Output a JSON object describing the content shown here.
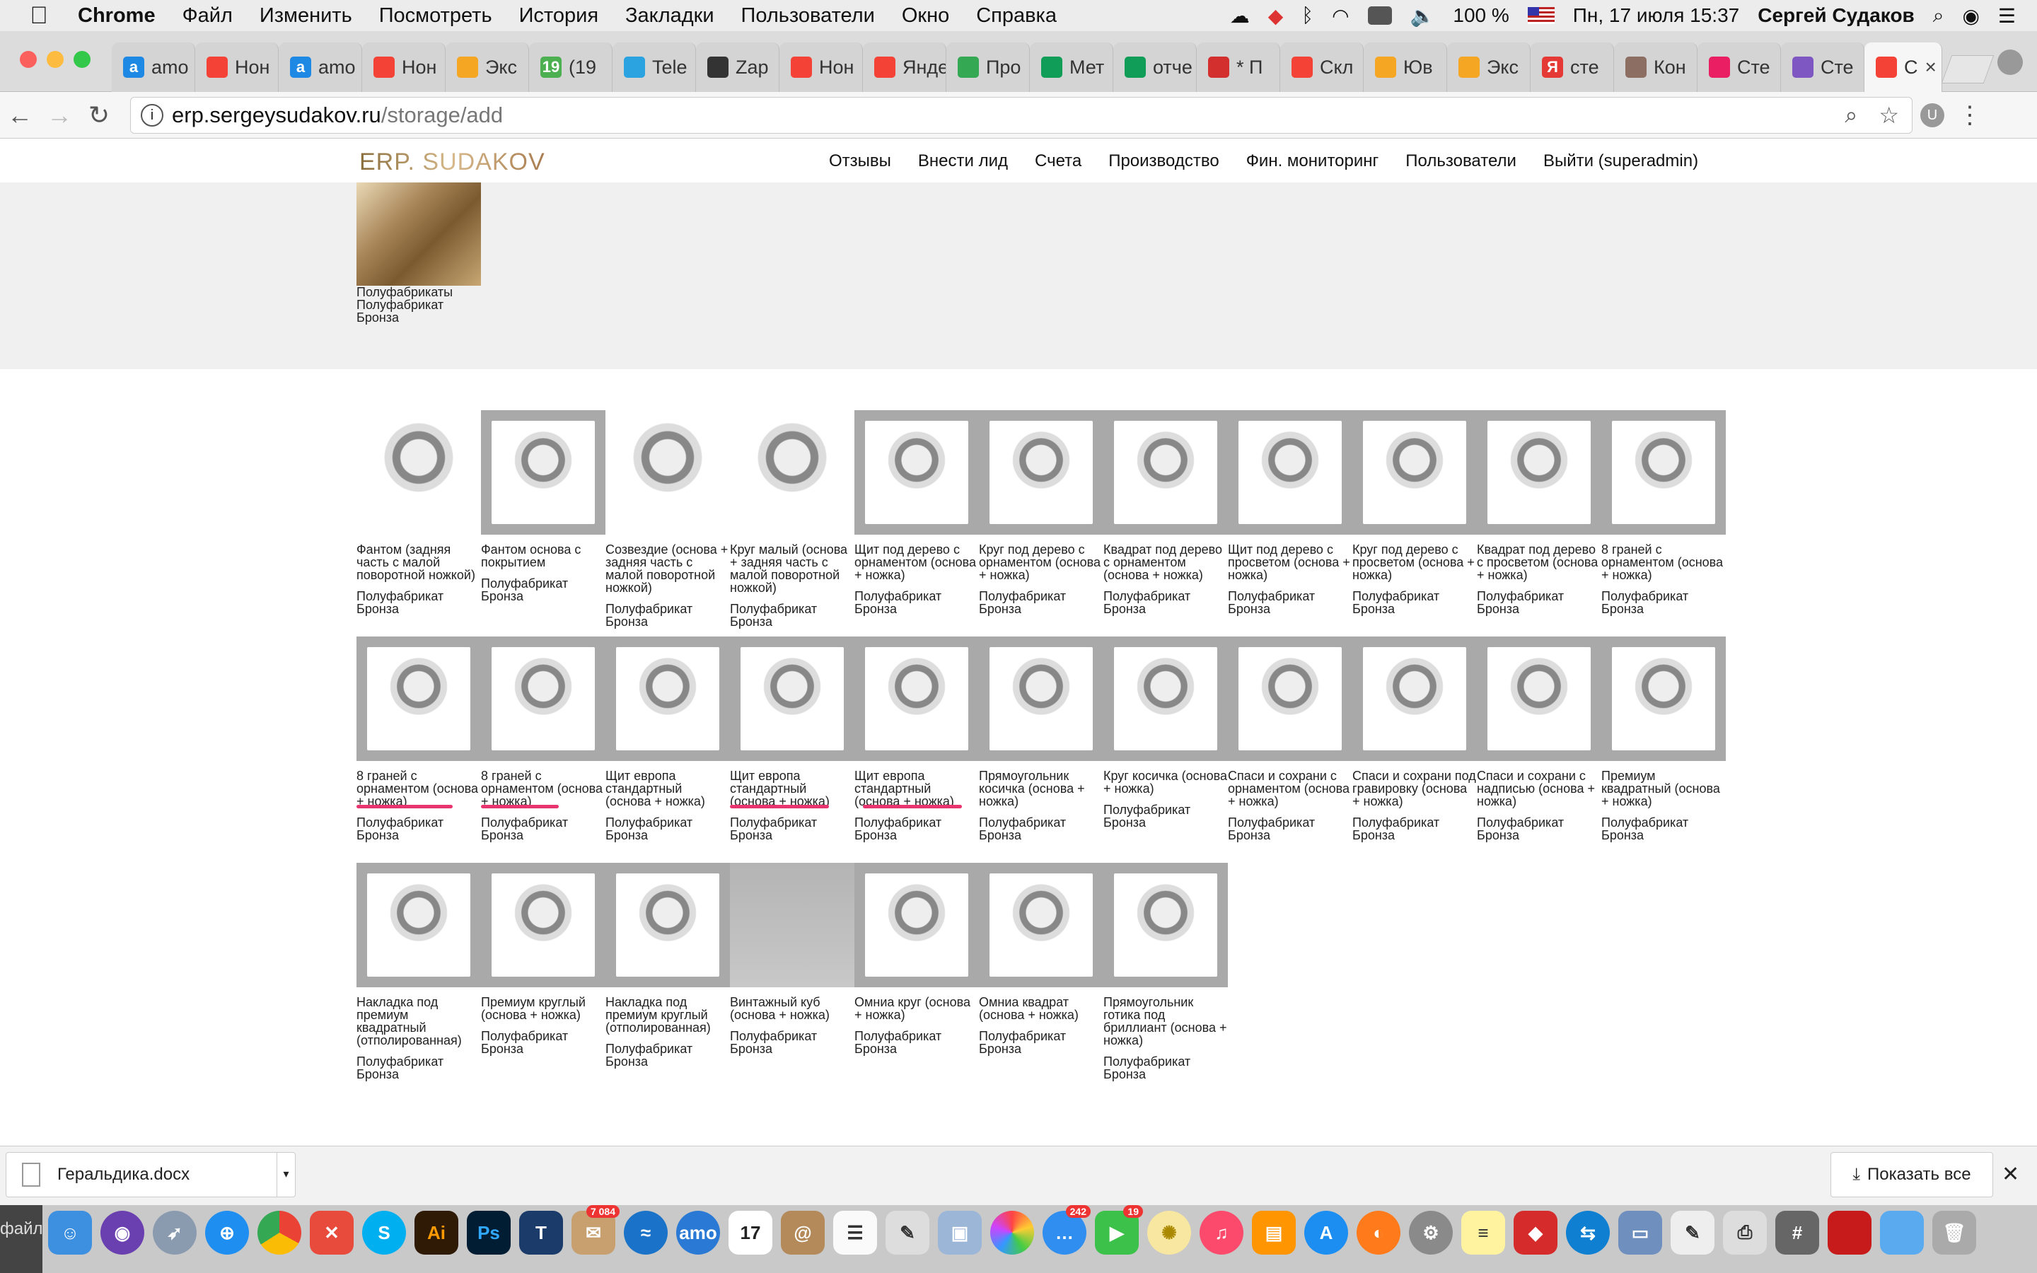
{
  "menubar": {
    "app": "Chrome",
    "items": [
      "Файл",
      "Изменить",
      "Посмотреть",
      "История",
      "Закладки",
      "Пользователи",
      "Окно",
      "Справка"
    ],
    "battery": "100 %",
    "datetime": "Пн, 17 июля  15:37",
    "user": "Сергей Судаков"
  },
  "tabs": [
    {
      "label": "amo",
      "icon": "a",
      "color": "#1e88e5"
    },
    {
      "label": "Нон",
      "icon": "",
      "color": "#f44336"
    },
    {
      "label": "amo",
      "icon": "a",
      "color": "#1e88e5"
    },
    {
      "label": "Нон",
      "icon": "",
      "color": "#f44336"
    },
    {
      "label": "Экс",
      "icon": "",
      "color": "#f5a623"
    },
    {
      "label": "(19",
      "icon": "19",
      "color": "#4caf50"
    },
    {
      "label": "Tele",
      "icon": "",
      "color": "#2aa3e0"
    },
    {
      "label": "Zap",
      "icon": "",
      "color": "#333333"
    },
    {
      "label": "Нон",
      "icon": "",
      "color": "#f44336"
    },
    {
      "label": "Яндекс",
      "icon": "",
      "color": "#f44336"
    },
    {
      "label": "Про",
      "icon": "",
      "color": "#34a853"
    },
    {
      "label": "Мет",
      "icon": "",
      "color": "#0f9d58"
    },
    {
      "label": "отче",
      "icon": "",
      "color": "#0f9d58"
    },
    {
      "label": "* П",
      "icon": "",
      "color": "#d32f2f"
    },
    {
      "label": "Скл",
      "icon": "",
      "color": "#f44336"
    },
    {
      "label": "Юв",
      "icon": "",
      "color": "#f5a623"
    },
    {
      "label": "Экс",
      "icon": "",
      "color": "#f5a623"
    },
    {
      "label": "сте",
      "icon": "Я",
      "color": "#e53935"
    },
    {
      "label": "Кон",
      "icon": "",
      "color": "#8d6e63"
    },
    {
      "label": "Сте",
      "icon": "",
      "color": "#e91e63"
    },
    {
      "label": "Сте",
      "icon": "",
      "color": "#7e57c2"
    },
    {
      "label": "С",
      "icon": "",
      "color": "#f44336",
      "active": true
    }
  ],
  "address": {
    "host": "erp.sergeysudakov.ru",
    "path": "/storage/add"
  },
  "site": {
    "logo": "ERP. SUDAKOV",
    "nav": [
      "Отзывы",
      "Внести лид",
      "Счета",
      "Производство",
      "Фин. мониторинг",
      "Пользователи",
      "Выйти (superadmin)"
    ]
  },
  "hero": {
    "lines": [
      "Полуфабрикаты",
      "Полуфабрикат",
      "Бронза"
    ]
  },
  "products": {
    "row1": [
      {
        "name": "Фантом (задняя часть с малой поворотной ножкой)",
        "type": "Полуфабрикат",
        "material": "Бронза",
        "thumb": "plain"
      },
      {
        "name": "Фантом основа с покрытием",
        "type": "Полуфабрикат",
        "material": "Бронза",
        "thumb": "frame"
      },
      {
        "name": "Созвездие (основа + задняя часть с малой поворотной ножкой)",
        "type": "Полуфабрикат",
        "material": "Бронза",
        "thumb": "plain"
      },
      {
        "name": "Круг малый (основа + задняя часть с малой поворотной ножкой)",
        "type": "Полуфабрикат",
        "material": "Бронза",
        "thumb": "plain"
      },
      {
        "name": "Щит под дерево с орнаментом (основа + ножка)",
        "type": "Полуфабрикат",
        "material": "Бронза",
        "thumb": "frame"
      },
      {
        "name": "Круг под дерево с орнаментом (основа + ножка)",
        "type": "Полуфабрикат",
        "material": "Бронза",
        "thumb": "frame"
      },
      {
        "name": "Квадрат под дерево с орнаментом (основа + ножка)",
        "type": "Полуфабрикат",
        "material": "Бронза",
        "thumb": "frame"
      },
      {
        "name": "Щит под дерево с просветом (основа + ножка)",
        "type": "Полуфабрикат",
        "material": "Бронза",
        "thumb": "frame"
      },
      {
        "name": "Круг под дерево с просветом (основа + ножка)",
        "type": "Полуфабрикат",
        "material": "Бронза",
        "thumb": "frame"
      },
      {
        "name": "Квадрат под дерево с просветом (основа + ножка)",
        "type": "Полуфабрикат",
        "material": "Бронза",
        "thumb": "frame"
      },
      {
        "name": "8 граней с орнаментом (основа + ножка)",
        "type": "Полуфабрикат",
        "material": "Бронза",
        "thumb": "frame"
      }
    ],
    "row2": [
      {
        "name": "8 граней с орнаментом (основа + ножка)",
        "type": "Полуфабрикат",
        "material": "Бронза",
        "thumb": "frame"
      },
      {
        "name": "8 граней с орнаментом (основа + ножка)",
        "type": "Полуфабрикат",
        "material": "Бронза",
        "thumb": "frame"
      },
      {
        "name": "Щит европа стандартный (основа + ножка)",
        "type": "Полуфабрикат",
        "material": "Бронза",
        "thumb": "frame"
      },
      {
        "name": "Щит европа стандартный (основа + ножка)",
        "type": "Полуфабрикат",
        "material": "Бронза",
        "thumb": "frame"
      },
      {
        "name": "Щит европа стандартный (основа + ножка)",
        "type": "Полуфабрикат",
        "material": "Бронза",
        "thumb": "frame"
      },
      {
        "name": "Прямоугольник косичка (основа + ножка)",
        "type": "Полуфабрикат",
        "material": "Бронза",
        "thumb": "frame"
      },
      {
        "name": "Круг косичка (основа + ножка)",
        "type": "Полуфабрикат",
        "material": "Бронза",
        "thumb": "frame"
      },
      {
        "name": "Спаси и сохрани с орнаментом (основа + ножка)",
        "type": "Полуфабрикат",
        "material": "Бронза",
        "thumb": "frame"
      },
      {
        "name": "Спаси и сохрани под гравировку (основа + ножка)",
        "type": "Полуфабрикат",
        "material": "Бронза",
        "thumb": "frame"
      },
      {
        "name": "Спаси и сохрани с надписью (основа + ножка)",
        "type": "Полуфабрикат",
        "material": "Бронза",
        "thumb": "frame"
      },
      {
        "name": "Премиум квадратный (основа + ножка)",
        "type": "Полуфабрикат",
        "material": "Бронза",
        "thumb": "frame"
      }
    ],
    "row3": [
      {
        "name": "Накладка под премиум квадратный (отполированная)",
        "type": "Полуфабрикат",
        "material": "Бронза",
        "thumb": "frame"
      },
      {
        "name": "Премиум круглый (основа + ножка)",
        "type": "Полуфабрикат",
        "material": "Бронза",
        "thumb": "frame"
      },
      {
        "name": "Накладка под премиум круглый (отполированная)",
        "type": "Полуфабрикат",
        "material": "Бронза",
        "thumb": "frame"
      },
      {
        "name": "Винтажный куб (основа + ножка)",
        "type": "Полуфабрикат",
        "material": "Бронза",
        "thumb": "empty"
      },
      {
        "name": "Омниа круг (основа + ножка)",
        "type": "Полуфабрикат",
        "material": "Бронза",
        "thumb": "frame"
      },
      {
        "name": "Омниа квадрат (основа + ножка)",
        "type": "Полуфабрикат",
        "material": "Бронза",
        "thumb": "frame"
      },
      {
        "name": "Прямоугольник готика под бриллиант (основа + ножка)",
        "type": "Полуфабрикат",
        "material": "Бронза",
        "thumb": "frame"
      }
    ]
  },
  "highlight_color": "#e8346f",
  "download": {
    "file": "Геральдика.docx",
    "show_all": "Показать все"
  },
  "dock": {
    "left_label": "файл",
    "badges": {
      "mail": "7 084",
      "messages": "242",
      "facetime": "19"
    },
    "calendar_day": "17"
  }
}
